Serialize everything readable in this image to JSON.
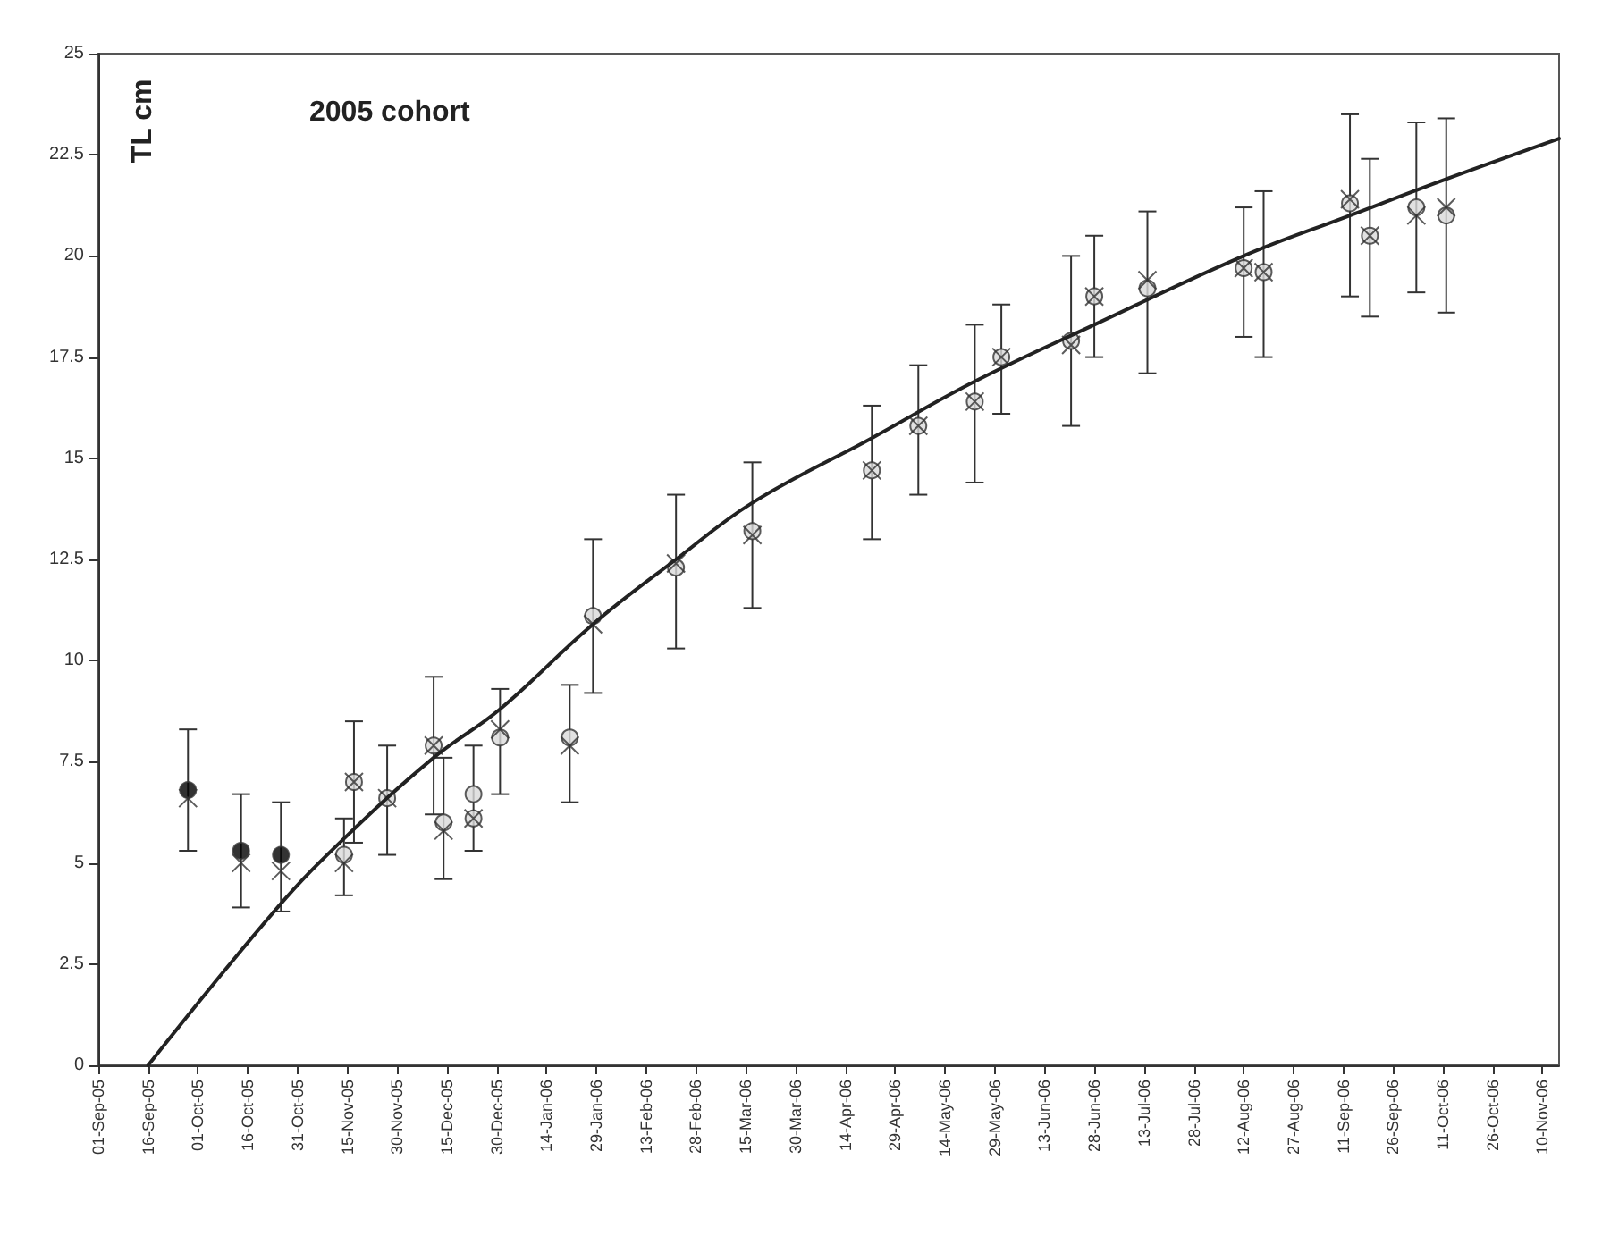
{
  "chart_data": {
    "type": "scatter",
    "title": "2005 cohort",
    "ylabel": "TL cm",
    "ylim": [
      0,
      25
    ],
    "yticks": [
      0,
      2.5,
      5,
      7.5,
      10,
      12.5,
      15,
      17.5,
      20,
      22.5,
      25
    ],
    "xlim": [
      "2005-09-01",
      "2006-11-15"
    ],
    "xticks": [
      {
        "value": "2005-09-01",
        "label": "01-Sep-05"
      },
      {
        "value": "2005-09-16",
        "label": "16-Sep-05"
      },
      {
        "value": "2005-10-01",
        "label": "01-Oct-05"
      },
      {
        "value": "2005-10-16",
        "label": "16-Oct-05"
      },
      {
        "value": "2005-10-31",
        "label": "31-Oct-05"
      },
      {
        "value": "2005-11-15",
        "label": "15-Nov-05"
      },
      {
        "value": "2005-11-30",
        "label": "30-Nov-05"
      },
      {
        "value": "2005-12-15",
        "label": "15-Dec-05"
      },
      {
        "value": "2005-12-30",
        "label": "30-Dec-05"
      },
      {
        "value": "2006-01-14",
        "label": "14-Jan-06"
      },
      {
        "value": "2006-01-29",
        "label": "29-Jan-06"
      },
      {
        "value": "2006-02-13",
        "label": "13-Feb-06"
      },
      {
        "value": "2006-02-28",
        "label": "28-Feb-06"
      },
      {
        "value": "2006-03-15",
        "label": "15-Mar-06"
      },
      {
        "value": "2006-03-30",
        "label": "30-Mar-06"
      },
      {
        "value": "2006-04-14",
        "label": "14-Apr-06"
      },
      {
        "value": "2006-04-29",
        "label": "29-Apr-06"
      },
      {
        "value": "2006-05-14",
        "label": "14-May-06"
      },
      {
        "value": "2006-05-29",
        "label": "29-May-06"
      },
      {
        "value": "2006-06-13",
        "label": "13-Jun-06"
      },
      {
        "value": "2006-06-28",
        "label": "28-Jun-06"
      },
      {
        "value": "2006-07-13",
        "label": "13-Jul-06"
      },
      {
        "value": "2006-07-28",
        "label": "28-Jul-06"
      },
      {
        "value": "2006-08-12",
        "label": "12-Aug-06"
      },
      {
        "value": "2006-08-27",
        "label": "27-Aug-06"
      },
      {
        "value": "2006-09-11",
        "label": "11-Sep-06"
      },
      {
        "value": "2006-09-26",
        "label": "26-Sep-06"
      },
      {
        "value": "2006-10-11",
        "label": "11-Oct-06"
      },
      {
        "value": "2006-10-26",
        "label": "26-Oct-06"
      },
      {
        "value": "2006-11-10",
        "label": "10-Nov-06"
      }
    ],
    "grid": false,
    "series": [
      {
        "marker": "circle",
        "color": "#d9d9d9",
        "colors": [
          "#000000",
          "#000000",
          "#000000",
          "#d9d9d9",
          "#d9d9d9",
          "#d9d9d9",
          "#d9d9d9",
          "#d9d9d9",
          "#d9d9d9",
          "#d9d9d9",
          "#d9d9d9",
          "#d9d9d9",
          "#d9d9d9",
          "#d9d9d9",
          "#d9d9d9",
          "#d9d9d9",
          "#d9d9d9",
          "#d9d9d9",
          "#d9d9d9",
          "#d9d9d9",
          "#d9d9d9",
          "#d9d9d9",
          "#d9d9d9",
          "#d9d9d9",
          "#d9d9d9",
          "#d9d9d9",
          "#d9d9d9",
          "#d9d9d9"
        ],
        "x": [
          "2005-09-28",
          "2005-10-14",
          "2005-10-26",
          "2005-11-14",
          "2005-11-17",
          "2005-11-27",
          "2005-12-11",
          "2005-12-14",
          "2005-12-23",
          "2005-12-23",
          "2005-12-31",
          "2006-01-21",
          "2006-01-28",
          "2006-02-22",
          "2006-03-17",
          "2006-04-22",
          "2006-05-06",
          "2006-05-23",
          "2006-05-31",
          "2006-06-21",
          "2006-06-28",
          "2006-07-14",
          "2006-08-12",
          "2006-08-18",
          "2006-09-13",
          "2006-09-19",
          "2006-10-03",
          "2006-10-12"
        ],
        "values": [
          6.8,
          5.3,
          5.2,
          5.2,
          7.0,
          6.6,
          7.9,
          6.0,
          6.7,
          6.1,
          8.1,
          8.1,
          11.1,
          12.3,
          13.2,
          14.7,
          15.8,
          16.4,
          17.5,
          17.9,
          19.0,
          19.2,
          19.7,
          19.6,
          21.3,
          20.5,
          21.2,
          21.0
        ],
        "errors": [
          [
            5.3,
            8.3
          ],
          [
            3.9,
            6.7
          ],
          [
            3.8,
            6.5
          ],
          [
            4.2,
            6.1
          ],
          [
            5.5,
            8.5
          ],
          [
            5.2,
            7.9
          ],
          [
            6.2,
            9.6
          ],
          [
            4.6,
            7.6
          ],
          [
            5.3,
            7.9
          ],
          null,
          [
            6.7,
            9.3
          ],
          [
            6.5,
            9.4
          ],
          [
            9.2,
            13.0
          ],
          [
            10.3,
            14.1
          ],
          [
            11.3,
            14.9
          ],
          [
            13.0,
            16.3
          ],
          [
            14.1,
            17.3
          ],
          [
            14.4,
            18.3
          ],
          [
            16.1,
            18.8
          ],
          [
            15.8,
            20.0
          ],
          [
            17.5,
            20.5
          ],
          [
            17.1,
            21.1
          ],
          [
            18.0,
            21.2
          ],
          [
            17.5,
            21.6
          ],
          [
            19.0,
            23.5
          ],
          [
            18.5,
            22.4
          ],
          [
            19.1,
            23.3
          ],
          [
            18.6,
            23.4
          ]
        ]
      },
      {
        "marker": "cross",
        "color": "#333333",
        "x": [
          "2005-09-28",
          "2005-10-14",
          "2005-10-26",
          "2005-11-14",
          "2005-11-17",
          "2005-11-27",
          "2005-12-11",
          "2005-12-14",
          "2005-12-23",
          "2005-12-31",
          "2006-01-21",
          "2006-01-28",
          "2006-02-22",
          "2006-03-17",
          "2006-04-22",
          "2006-05-06",
          "2006-05-23",
          "2006-05-31",
          "2006-06-21",
          "2006-06-28",
          "2006-07-14",
          "2006-08-12",
          "2006-08-18",
          "2006-09-13",
          "2006-09-19",
          "2006-10-03",
          "2006-10-12"
        ],
        "values": [
          6.6,
          5.0,
          4.8,
          5.0,
          7.0,
          6.6,
          7.9,
          5.8,
          6.1,
          8.3,
          7.9,
          10.9,
          12.4,
          13.1,
          14.7,
          15.8,
          16.4,
          17.5,
          17.8,
          19.0,
          19.4,
          19.7,
          19.6,
          21.4,
          20.5,
          21.0,
          21.2
        ]
      },
      {
        "type": "line",
        "marker": "none",
        "line_style": "solid",
        "color": "#222222",
        "x": [
          "2005-09-16",
          "2005-10-25",
          "2005-11-14",
          "2005-12-11",
          "2005-12-31",
          "2006-01-28",
          "2006-02-22",
          "2006-03-17",
          "2006-04-22",
          "2006-05-23",
          "2006-06-28",
          "2006-08-12",
          "2006-09-13",
          "2006-10-12",
          "2006-11-15"
        ],
        "values": [
          0,
          3.9,
          5.6,
          7.6,
          8.8,
          10.9,
          12.5,
          13.9,
          15.5,
          16.9,
          18.3,
          20.0,
          21.0,
          21.9,
          22.9
        ]
      }
    ]
  }
}
